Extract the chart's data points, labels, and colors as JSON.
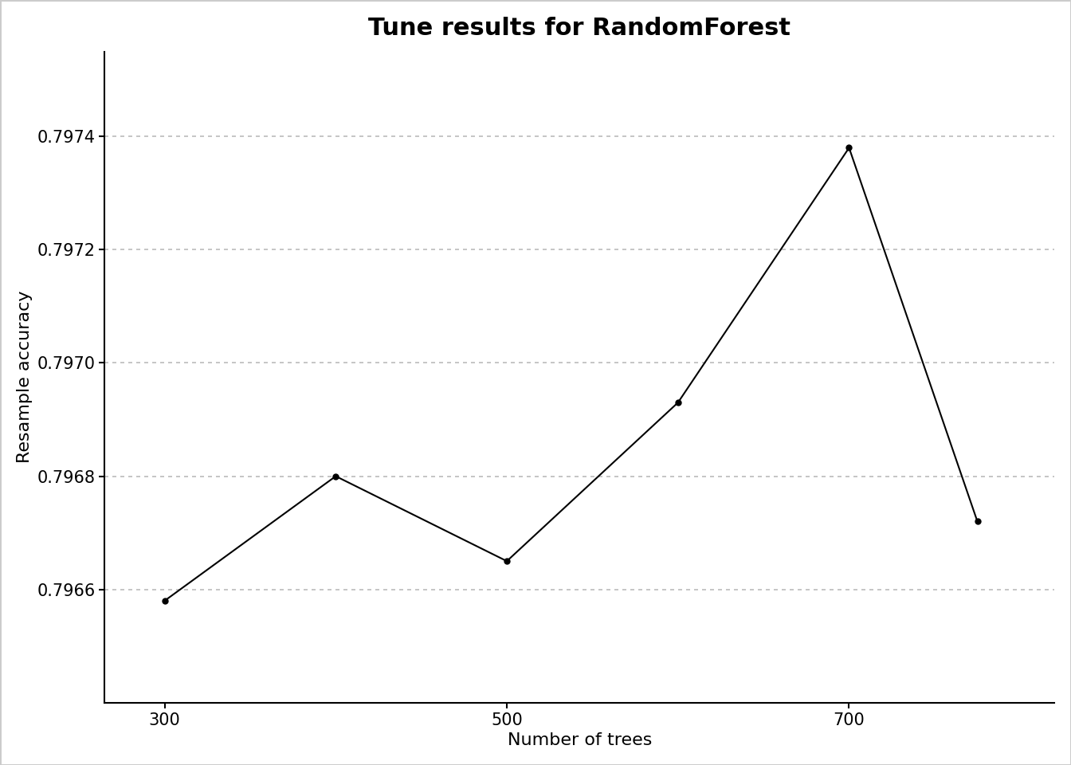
{
  "title": "Tune results for RandomForest",
  "xlabel": "Number of trees",
  "ylabel": "Resample accuracy",
  "x_values": [
    300,
    400,
    500,
    600,
    700,
    775
  ],
  "y_values": [
    0.79658,
    0.7968,
    0.79665,
    0.79693,
    0.79738,
    0.79672
  ],
  "line_color": "#000000",
  "marker_color": "#000000",
  "marker_size": 5,
  "line_width": 1.5,
  "background_color": "#ffffff",
  "grid_color": "#bbbbbb",
  "yticks": [
    0.7966,
    0.7968,
    0.797,
    0.7972,
    0.7974
  ],
  "xticks": [
    300,
    500,
    700
  ],
  "ylim": [
    0.7964,
    0.79755
  ],
  "xlim": [
    265,
    820
  ],
  "title_fontsize": 22,
  "axis_label_fontsize": 16,
  "tick_fontsize": 15
}
